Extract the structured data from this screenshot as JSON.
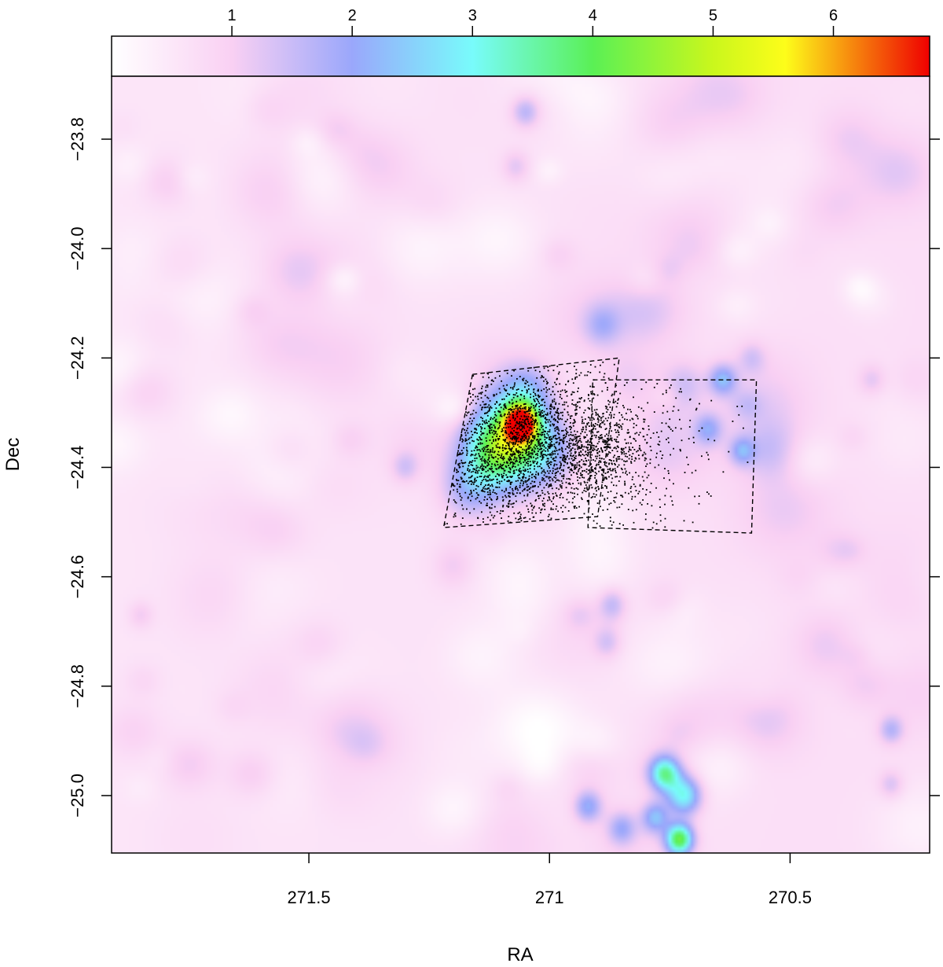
{
  "chart_data": {
    "type": "heatmap",
    "xlabel": "RA",
    "ylabel": "Dec",
    "x_reversed": true,
    "xlim": [
      271.91,
      270.21
    ],
    "ylim": [
      -25.105,
      -23.685
    ],
    "x_ticks": [
      271.5,
      271,
      270.5
    ],
    "x_tick_labels": [
      "271.5",
      "271",
      "270.5"
    ],
    "y_ticks": [
      -23.8,
      -24.0,
      -24.2,
      -24.4,
      -24.6,
      -24.8,
      -25.0
    ],
    "y_tick_labels": [
      "−23.8",
      "−24.0",
      "−24.2",
      "−24.4",
      "−24.6",
      "−24.8",
      "−25.0"
    ],
    "colorbar": {
      "position": "top",
      "range": [
        0,
        6.8
      ],
      "ticks": [
        1,
        2,
        3,
        4,
        5,
        6
      ],
      "tick_labels": [
        "1",
        "2",
        "3",
        "4",
        "5",
        "6"
      ],
      "colors": [
        {
          "value": 0.0,
          "color": "#ffffff"
        },
        {
          "value": 1.0,
          "color": "#f9d0f3"
        },
        {
          "value": 2.0,
          "color": "#9aa7fb"
        },
        {
          "value": 3.0,
          "color": "#78fbfb"
        },
        {
          "value": 4.0,
          "color": "#5af055"
        },
        {
          "value": 5.0,
          "color": "#caf71c"
        },
        {
          "value": 5.6,
          "color": "#fdfd1a"
        },
        {
          "value": 6.8,
          "color": "#ef0000"
        }
      ]
    },
    "background_level": 0.7,
    "density_peaks": [
      {
        "ra": 271.06,
        "dec": -24.32,
        "amp": 5.8,
        "sigma": 0.022
      },
      {
        "ra": 271.08,
        "dec": -24.34,
        "amp": 2.6,
        "sigma": 0.06
      },
      {
        "ra": 271.12,
        "dec": -24.38,
        "amp": 1.8,
        "sigma": 0.05
      },
      {
        "ra": 271.17,
        "dec": -24.44,
        "amp": 1.0,
        "sigma": 0.04
      },
      {
        "ra": 271.01,
        "dec": -24.37,
        "amp": 0.9,
        "sigma": 0.04
      },
      {
        "ra": 271.05,
        "dec": -24.26,
        "amp": 1.0,
        "sigma": 0.035
      },
      {
        "ra": 271.3,
        "dec": -24.4,
        "amp": 0.7,
        "sigma": 0.02
      },
      {
        "ra": 270.73,
        "dec": -25.08,
        "amp": 3.5,
        "sigma": 0.02
      },
      {
        "ra": 270.72,
        "dec": -25.0,
        "amp": 2.4,
        "sigma": 0.025
      },
      {
        "ra": 270.76,
        "dec": -24.96,
        "amp": 2.6,
        "sigma": 0.022
      },
      {
        "ra": 270.78,
        "dec": -25.04,
        "amp": 1.6,
        "sigma": 0.02
      },
      {
        "ra": 270.92,
        "dec": -25.02,
        "amp": 1.4,
        "sigma": 0.02
      },
      {
        "ra": 270.85,
        "dec": -25.06,
        "amp": 1.1,
        "sigma": 0.02
      },
      {
        "ra": 270.64,
        "dec": -24.24,
        "amp": 1.5,
        "sigma": 0.02
      },
      {
        "ra": 270.67,
        "dec": -24.33,
        "amp": 1.2,
        "sigma": 0.02
      },
      {
        "ra": 270.6,
        "dec": -24.37,
        "amp": 1.2,
        "sigma": 0.018
      },
      {
        "ra": 270.72,
        "dec": -24.25,
        "amp": 0.7,
        "sigma": 0.03
      },
      {
        "ra": 270.89,
        "dec": -24.14,
        "amp": 0.8,
        "sigma": 0.025
      },
      {
        "ra": 271.05,
        "dec": -23.75,
        "amp": 1.0,
        "sigma": 0.02
      },
      {
        "ra": 271.07,
        "dec": -23.85,
        "amp": 0.6,
        "sigma": 0.02
      },
      {
        "ra": 270.87,
        "dec": -24.65,
        "amp": 0.9,
        "sigma": 0.02
      },
      {
        "ra": 270.88,
        "dec": -24.72,
        "amp": 0.7,
        "sigma": 0.02
      },
      {
        "ra": 270.29,
        "dec": -24.88,
        "amp": 1.0,
        "sigma": 0.018
      },
      {
        "ra": 270.29,
        "dec": -24.98,
        "amp": 0.7,
        "sigma": 0.018
      },
      {
        "ra": 270.33,
        "dec": -24.24,
        "amp": 0.6,
        "sigma": 0.02
      },
      {
        "ra": 270.58,
        "dec": -24.2,
        "amp": 0.6,
        "sigma": 0.02
      },
      {
        "ra": 271.2,
        "dec": -24.58,
        "amp": 0.5,
        "sigma": 0.03
      },
      {
        "ra": 271.85,
        "dec": -24.67,
        "amp": 0.5,
        "sigma": 0.018
      }
    ],
    "star_fields": [
      {
        "corners": [
          [
            271.16,
            -24.23
          ],
          [
            270.855,
            -24.2
          ],
          [
            270.9,
            -24.49
          ],
          [
            271.22,
            -24.51
          ]
        ]
      },
      {
        "corners": [
          [
            270.91,
            -24.24
          ],
          [
            270.57,
            -24.24
          ],
          [
            270.58,
            -24.52
          ],
          [
            270.92,
            -24.51
          ]
        ]
      }
    ],
    "point_clusters": [
      {
        "ra": 271.06,
        "dec": -24.35,
        "sigma_ra": 0.07,
        "sigma_dec": 0.06,
        "count": 1100
      },
      {
        "ra": 270.91,
        "dec": -24.37,
        "sigma_ra": 0.06,
        "sigma_dec": 0.045,
        "count": 650
      },
      {
        "ra": 270.99,
        "dec": -24.36,
        "sigma_ra": 0.16,
        "sigma_dec": 0.1,
        "count": 900
      },
      {
        "ra": 271.13,
        "dec": -24.42,
        "sigma_ra": 0.05,
        "sigma_dec": 0.04,
        "count": 250
      }
    ]
  }
}
